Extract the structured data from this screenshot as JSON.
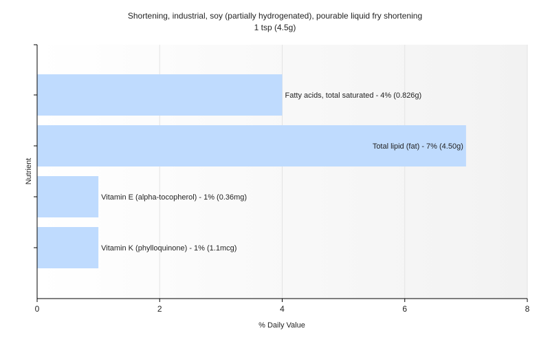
{
  "chart_data": {
    "type": "bar",
    "orientation": "horizontal",
    "title": "Shortening, industrial, soy (partially hydrogenated), pourable liquid fry shortening",
    "subtitle": "1 tsp (4.5g)",
    "xlabel": "% Daily Value",
    "ylabel": "Nutrient",
    "xlim": [
      0,
      8
    ],
    "xticks": [
      0,
      2,
      4,
      6,
      8
    ],
    "grid": true,
    "legend": "none",
    "bar_color": "#bfdbfe",
    "bars": [
      {
        "category": "Fatty acids, total saturated",
        "value": 4,
        "label": "Fatty acids, total saturated - 4% (0.826g)"
      },
      {
        "category": "Total lipid (fat)",
        "value": 7,
        "label": "Total lipid (fat) - 7% (4.50g)"
      },
      {
        "category": "Vitamin E (alpha-tocopherol)",
        "value": 1,
        "label": "Vitamin E (alpha-tocopherol) - 1% (0.36mg)"
      },
      {
        "category": "Vitamin K (phylloquinone)",
        "value": 1,
        "label": "Vitamin K (phylloquinone) - 1% (1.1mcg)"
      }
    ]
  }
}
